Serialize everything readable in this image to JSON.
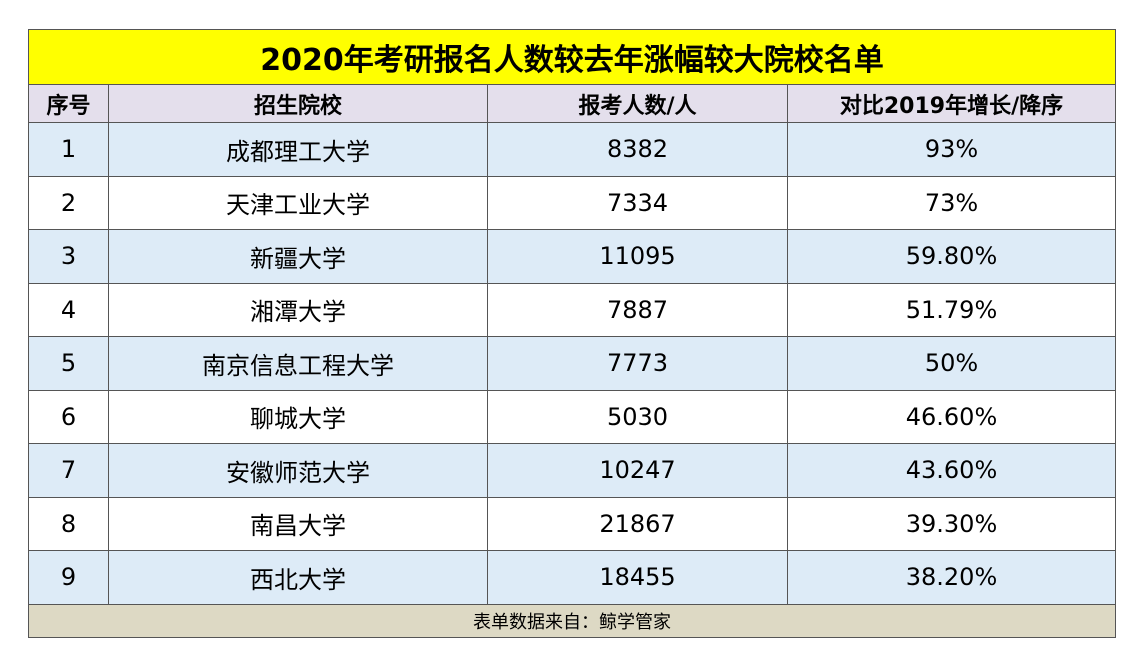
{
  "title": "2020年考研报名人数较去年涨幅较大院校名单",
  "table": {
    "header": [
      "序号",
      "招生院校",
      "报考人数/人",
      "对比2019年增长/降序"
    ],
    "rows": [
      [
        "1",
        "成都理工大学",
        "8382",
        "93%"
      ],
      [
        "2",
        "天津工业大学",
        "7334",
        "73%"
      ],
      [
        "3",
        "新疆大学",
        "11095",
        "59.80%"
      ],
      [
        "4",
        "湘潭大学",
        "7887",
        "51.79%"
      ],
      [
        "5",
        "南京信息工程大学",
        "7773",
        "50%"
      ],
      [
        "6",
        "聊城大学",
        "5030",
        "46.60%"
      ],
      [
        "7",
        "安徽师范大学",
        "10247",
        "43.60%"
      ],
      [
        "8",
        "南昌大学",
        "21867",
        "39.30%"
      ],
      [
        "9",
        "西北大学",
        "18455",
        "38.20%"
      ]
    ]
  },
  "footer": "表单数据来自：鲸学管家"
}
